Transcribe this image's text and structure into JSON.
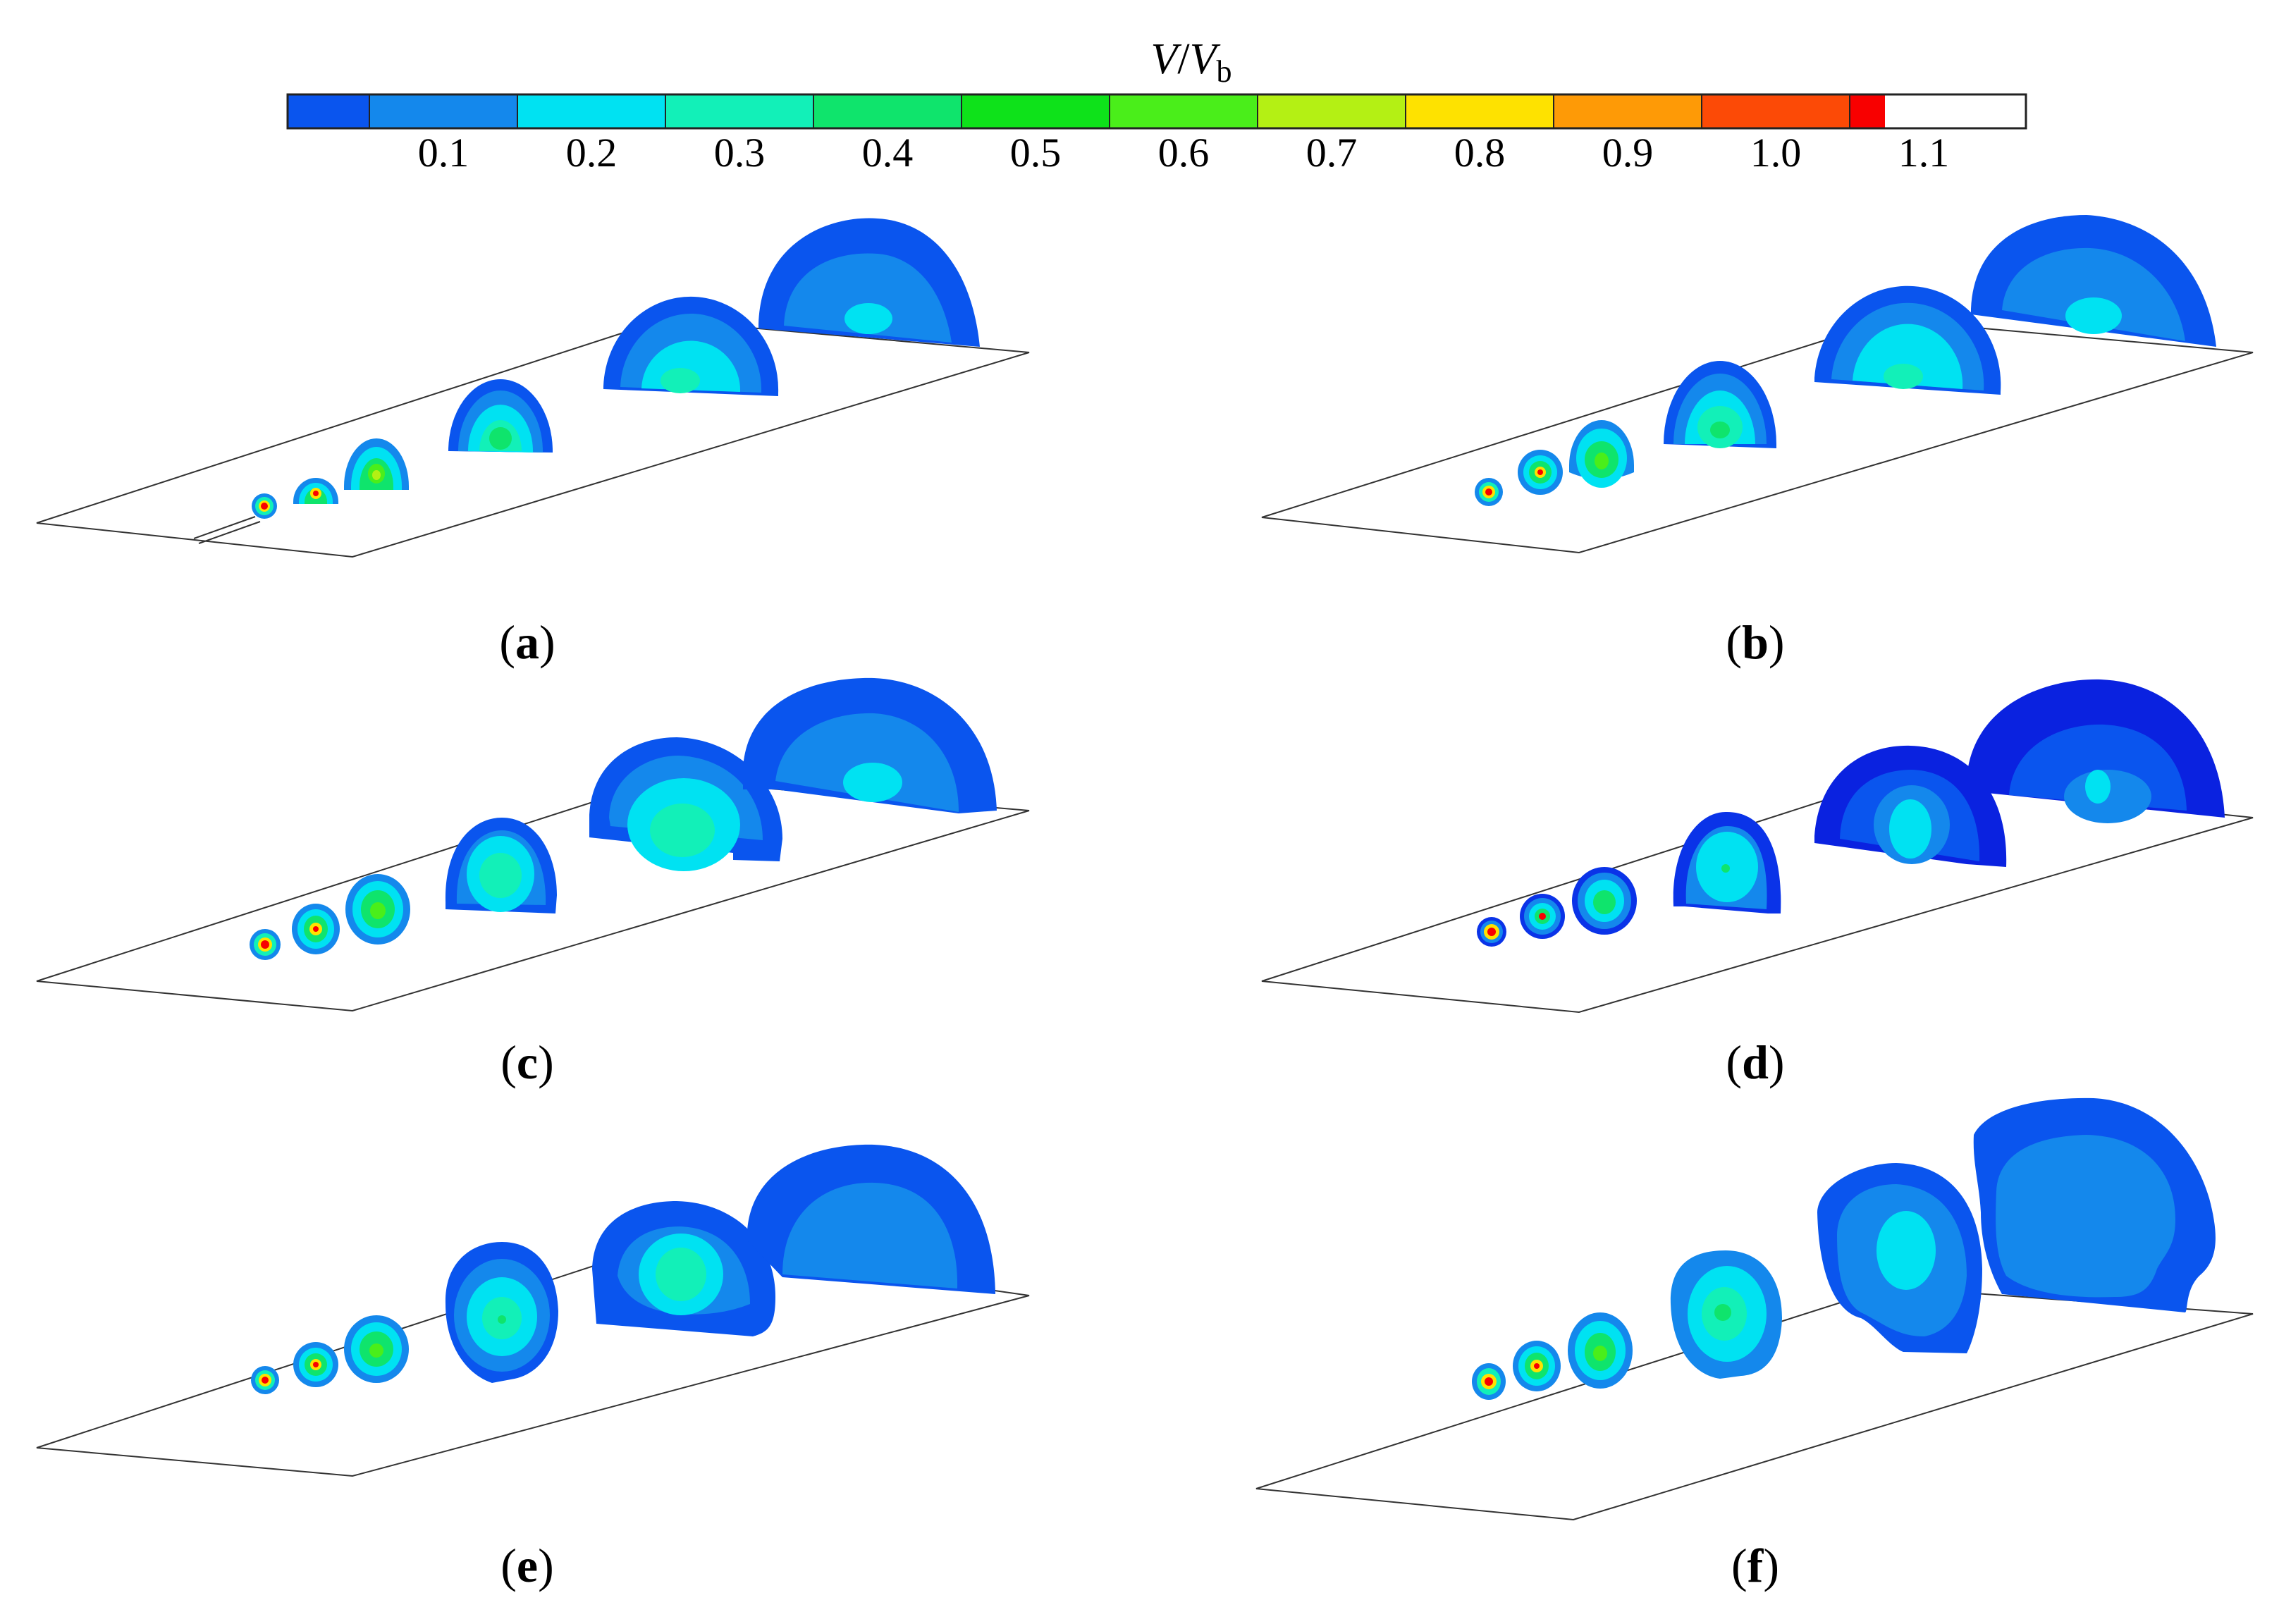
{
  "colorbar": {
    "title_italic": "V",
    "title_sep": "/",
    "title_italic2": "V",
    "title_sub": "b",
    "colors": [
      "#0a55ee",
      "#1488ec",
      "#00e2f2",
      "#12f0b8",
      "#0fe46c",
      "#0ee21a",
      "#4aee1a",
      "#b4f014",
      "#fee200",
      "#fe9a06",
      "#fc4a06",
      "#f80000"
    ],
    "tick_labels": [
      "0.1",
      "0.2",
      "0.3",
      "0.4",
      "0.5",
      "0.6",
      "0.7",
      "0.8",
      "0.9",
      "1.0",
      "1.1"
    ]
  },
  "panels": [
    {
      "label": "(a)",
      "letter": "a"
    },
    {
      "label": "(b)",
      "letter": "b"
    },
    {
      "label": "(c)",
      "letter": "c"
    },
    {
      "label": "(d)",
      "letter": "d"
    },
    {
      "label": "(e)",
      "letter": "e"
    },
    {
      "label": "(f)",
      "letter": "f"
    }
  ],
  "panel_letter_wrap": [
    "(",
    ")"
  ]
}
